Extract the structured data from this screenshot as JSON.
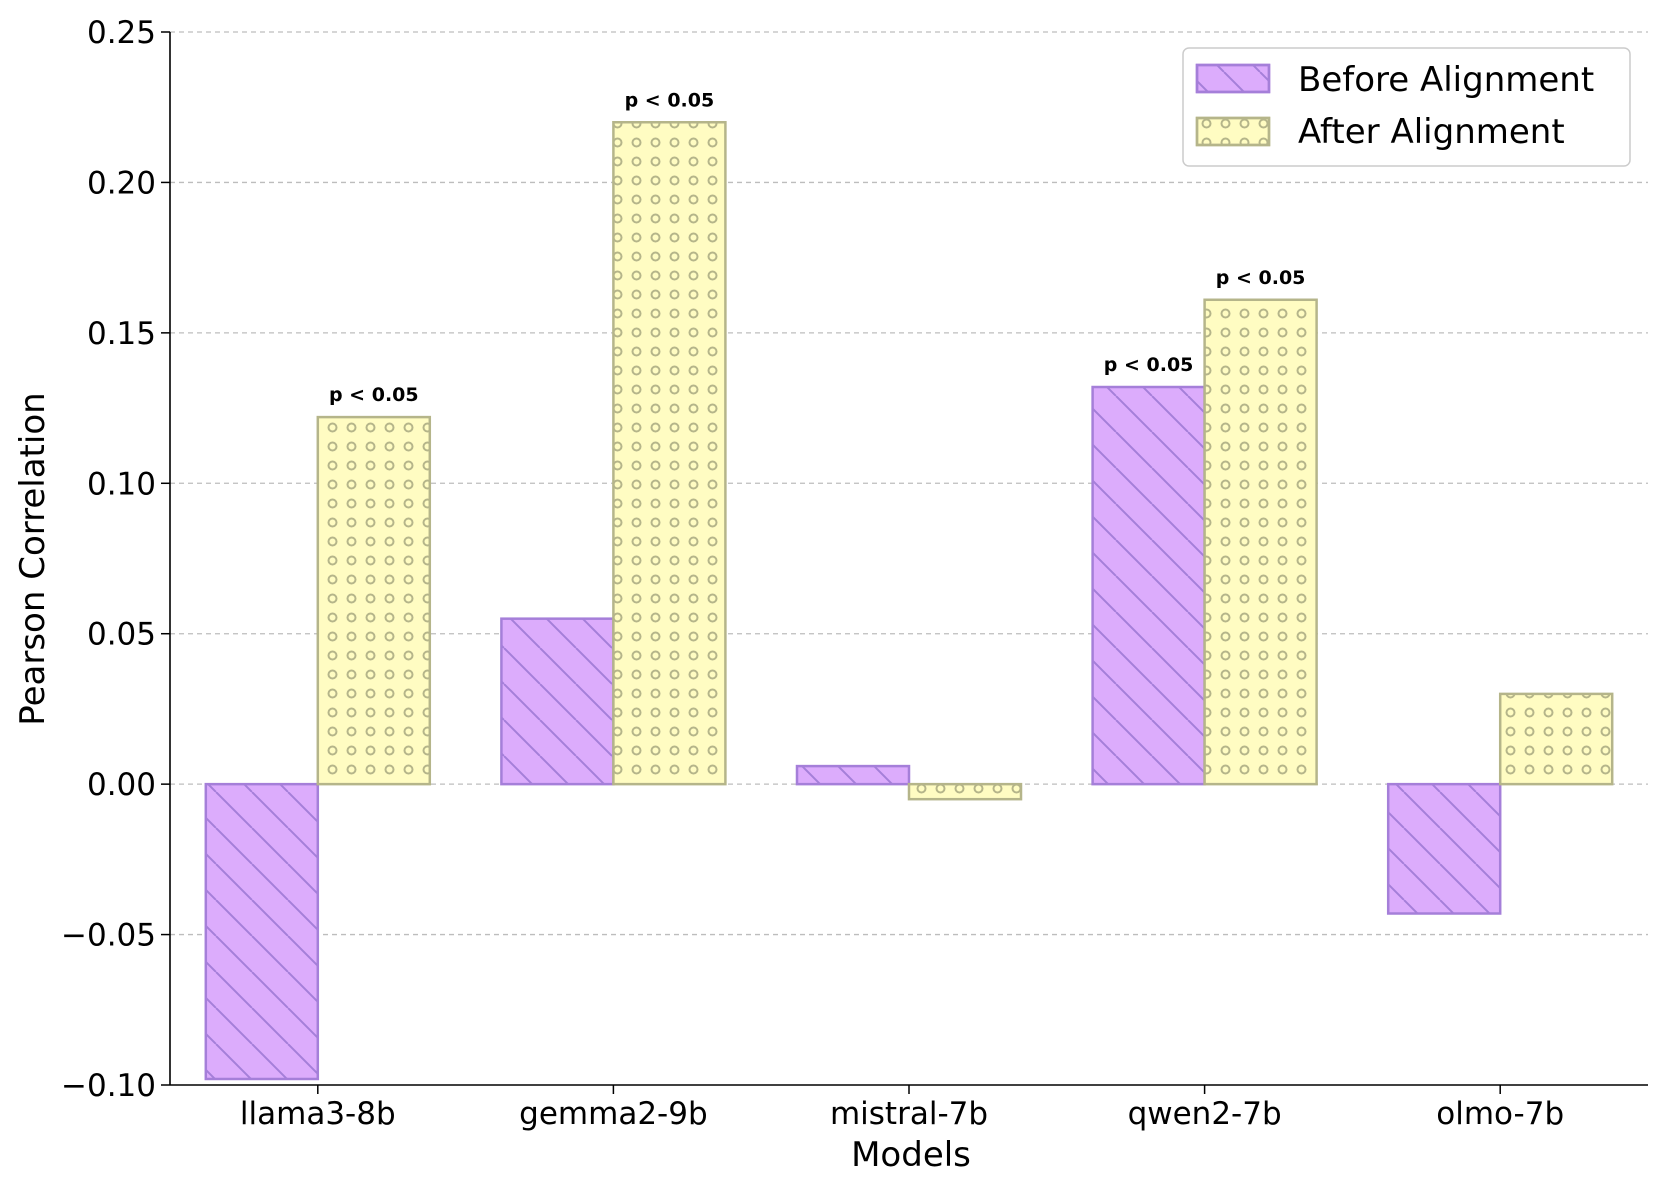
{
  "chart_data": {
    "type": "bar",
    "title": "",
    "xlabel": "Models",
    "ylabel": "Pearson Correlation",
    "categories": [
      "llama3-8b",
      "gemma2-9b",
      "mistral-7b",
      "qwen2-7b",
      "olmo-7b"
    ],
    "series": [
      {
        "name": "Before Alignment",
        "values": [
          -0.098,
          0.055,
          0.006,
          0.132,
          -0.043
        ],
        "annotations": [
          "",
          "",
          "",
          "p < 0.05",
          ""
        ],
        "color": "#dcacfc",
        "edge_color": "#a57fd9",
        "hatch": "diagonal"
      },
      {
        "name": "After Alignment",
        "values": [
          0.122,
          0.22,
          -0.005,
          0.161,
          0.03
        ],
        "annotations": [
          "p < 0.05",
          "p < 0.05",
          "",
          "p < 0.05",
          ""
        ],
        "color": "#fffcc2",
        "edge_color": "#b5b58a",
        "hatch": "circles"
      }
    ],
    "ylim": [
      -0.1,
      0.25
    ],
    "yticks": [
      -0.1,
      -0.05,
      0.0,
      0.05,
      0.1,
      0.15,
      0.2,
      0.25
    ],
    "ytick_labels": [
      "−0.10",
      "−0.05",
      "0.00",
      "0.05",
      "0.10",
      "0.15",
      "0.20",
      "0.25"
    ],
    "grid": "y-dashed",
    "legend_position": "top-right"
  }
}
